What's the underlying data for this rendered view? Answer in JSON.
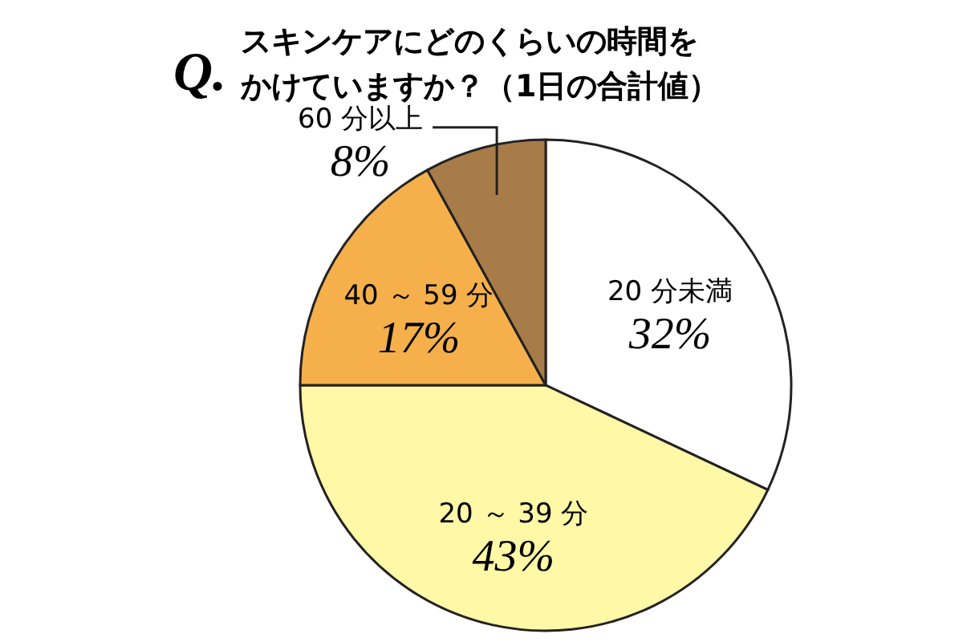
{
  "chart_data": {
    "type": "pie",
    "title": "スキンケアにどのくらいの時間をかけていますか？（1日の合計値）",
    "annotations": [
      "Q."
    ],
    "categories": [
      "20 分未満",
      "20 ～ 39 分",
      "40 ～ 59 分",
      "60 分以上"
    ],
    "values": [
      32,
      43,
      17,
      8
    ],
    "colors": [
      "#ffffff",
      "#fff8a6",
      "#f5b04c",
      "#a87c48"
    ],
    "value_labels": [
      "32%",
      "43%",
      "17%",
      "8%"
    ]
  }
}
